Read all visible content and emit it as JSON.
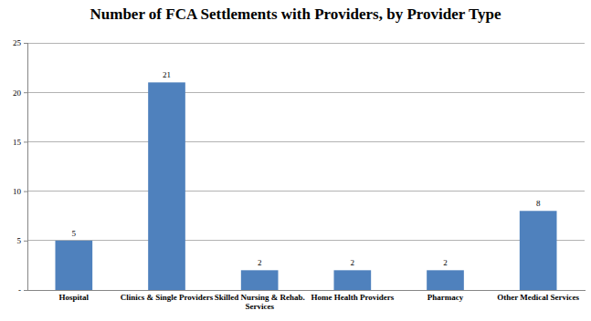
{
  "chart_data": {
    "type": "bar",
    "title": "Number of FCA Settlements with Providers, by Provider Type",
    "categories": [
      "Hospital",
      "Clinics & Single Providers",
      "Skilled Nursing & Rehab. Services",
      "Home Health Providers",
      "Pharmacy",
      "Other Medical Services"
    ],
    "values": [
      5,
      21,
      2,
      2,
      2,
      8
    ],
    "color": "#4f81bd",
    "ylim": [
      0,
      25
    ],
    "yticks": [
      {
        "value": 0,
        "label": "-"
      },
      5,
      10,
      15,
      20,
      25
    ],
    "grid": true,
    "data_labels": true
  }
}
